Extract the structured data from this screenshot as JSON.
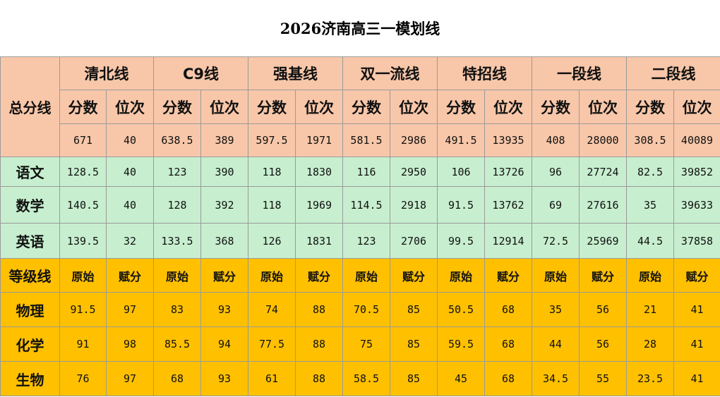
{
  "title": "2026济南高三一模划线",
  "total_label": "总分线",
  "groups": [
    "清北线",
    "C9线",
    "强基线",
    "双一流线",
    "特招线",
    "一段线",
    "二段线"
  ],
  "score_header": "分数",
  "rank_header": "位次",
  "total_row": [
    "671",
    "40",
    "638.5",
    "389",
    "597.5",
    "1971",
    "581.5",
    "2986",
    "491.5",
    "13935",
    "408",
    "28000",
    "308.5",
    "40089"
  ],
  "subjects": [
    {
      "name": "语文",
      "values": [
        "128.5",
        "40",
        "123",
        "390",
        "118",
        "1830",
        "116",
        "2950",
        "106",
        "13726",
        "96",
        "27724",
        "82.5",
        "39852"
      ]
    },
    {
      "name": "数学",
      "values": [
        "140.5",
        "40",
        "128",
        "392",
        "118",
        "1969",
        "114.5",
        "2918",
        "91.5",
        "13762",
        "69",
        "27616",
        "35",
        "39633"
      ]
    },
    {
      "name": "英语",
      "values": [
        "139.5",
        "32",
        "133.5",
        "368",
        "126",
        "1831",
        "123",
        "2706",
        "99.5",
        "12914",
        "72.5",
        "25969",
        "44.5",
        "37858"
      ]
    }
  ],
  "level_label": "等级线",
  "raw_header": "原始",
  "assigned_header": "赋分",
  "levels": [
    {
      "name": "物理",
      "values": [
        "91.5",
        "97",
        "83",
        "93",
        "74",
        "88",
        "70.5",
        "85",
        "50.5",
        "68",
        "35",
        "56",
        "21",
        "41"
      ]
    },
    {
      "name": "化学",
      "values": [
        "91",
        "98",
        "85.5",
        "94",
        "77.5",
        "88",
        "75",
        "85",
        "59.5",
        "68",
        "44",
        "56",
        "28",
        "41"
      ]
    },
    {
      "name": "生物",
      "values": [
        "76",
        "97",
        "68",
        "93",
        "61",
        "88",
        "58.5",
        "85",
        "45",
        "68",
        "34.5",
        "55",
        "23.5",
        "41"
      ]
    }
  ]
}
